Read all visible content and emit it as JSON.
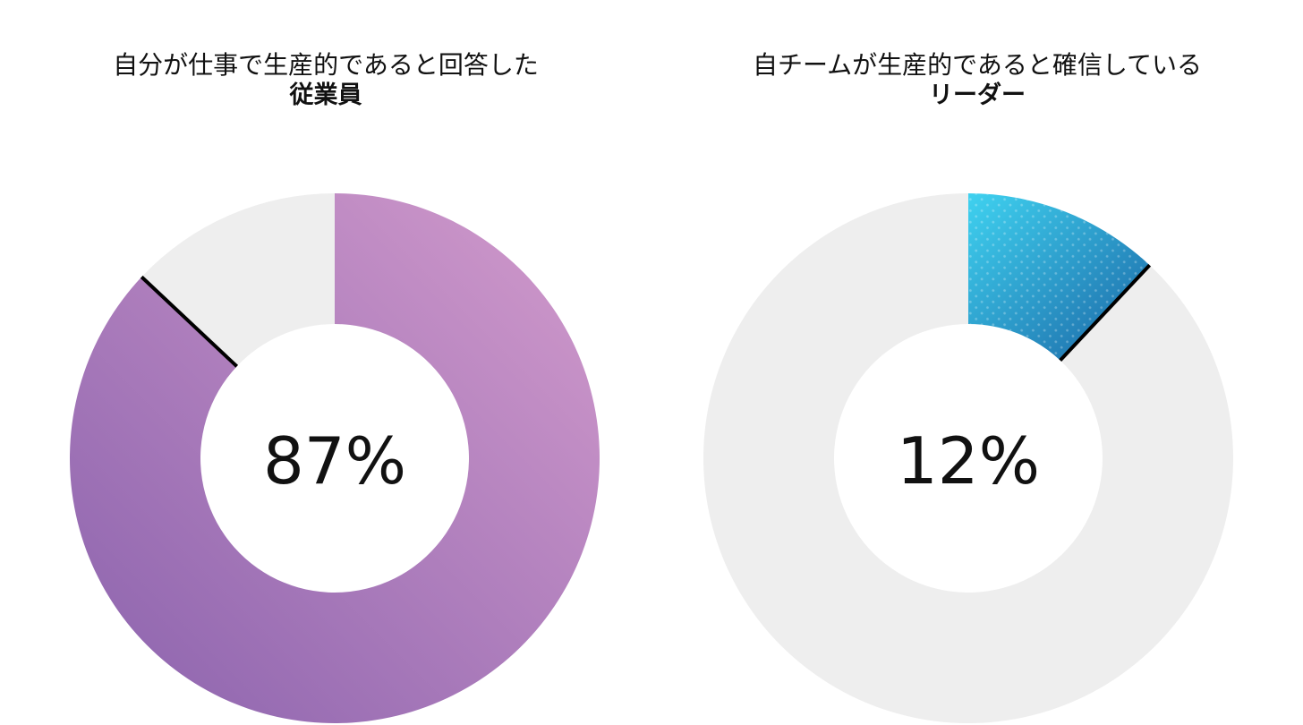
{
  "chart_data": [
    {
      "type": "pie",
      "title": "自分が仕事で生産的であると回答した",
      "subtitle": "従業員",
      "center_label": "87%",
      "slices": [
        {
          "value": 87,
          "color_start": "#d39bcc",
          "color_end": "#8a62ad"
        },
        {
          "value": 13,
          "color": "#eeeeee"
        }
      ]
    },
    {
      "type": "pie",
      "title": "自チームが生産的であると確信している",
      "subtitle": "リーダー",
      "center_label": "12%",
      "slices": [
        {
          "value": 12,
          "color_start": "#3fd2f0",
          "color_end": "#1a64a4"
        },
        {
          "value": 88,
          "color": "#eeeeee"
        }
      ]
    }
  ]
}
